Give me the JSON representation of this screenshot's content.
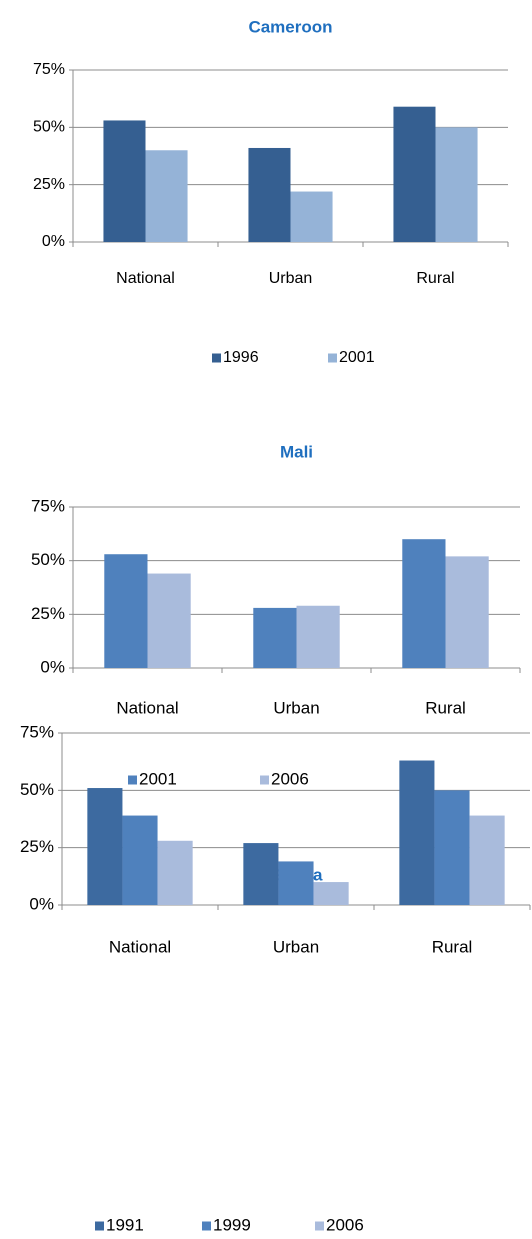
{
  "chart_data": [
    {
      "type": "bar",
      "title": "Cameroon",
      "categories": [
        "National",
        "Urban",
        "Rural"
      ],
      "series": [
        {
          "name": "1996",
          "color": "#355f91",
          "values": [
            53,
            41,
            59
          ]
        },
        {
          "name": "2001",
          "color": "#95b3d7",
          "values": [
            40,
            22,
            50
          ]
        }
      ],
      "ylim": [
        0,
        75
      ],
      "yticks": [
        {
          "value": 0,
          "label": "0%"
        },
        {
          "value": 25,
          "label": "25%"
        },
        {
          "value": 50,
          "label": "50%"
        },
        {
          "value": 75,
          "label": "75%"
        }
      ],
      "grid": true,
      "legend": "bottom"
    },
    {
      "type": "bar",
      "title": "Mali",
      "categories": [
        "National",
        "Urban",
        "Rural"
      ],
      "series": [
        {
          "name": "2001",
          "color": "#4f81bd",
          "values": [
            53,
            28,
            60
          ]
        },
        {
          "name": "2006",
          "color": "#a9bbdc",
          "values": [
            44,
            29,
            52
          ]
        }
      ],
      "ylim": [
        0,
        75
      ],
      "yticks": [
        {
          "value": 0,
          "label": "0%"
        },
        {
          "value": 25,
          "label": "25%"
        },
        {
          "value": 50,
          "label": "50%"
        },
        {
          "value": 75,
          "label": "75%"
        }
      ],
      "grid": true,
      "legend": "bottom"
    },
    {
      "type": "bar",
      "title": "Ghana",
      "categories": [
        "National",
        "Urban",
        "Rural"
      ],
      "series": [
        {
          "name": "1991",
          "color": "#3d6aa0",
          "values": [
            51,
            27,
            63
          ]
        },
        {
          "name": "1999",
          "color": "#4f81bd",
          "values": [
            39,
            19,
            50
          ]
        },
        {
          "name": "2006",
          "color": "#a9bbdc",
          "values": [
            28,
            10,
            39
          ]
        }
      ],
      "ylim": [
        0,
        75
      ],
      "yticks": [
        {
          "value": 0,
          "label": "0%"
        },
        {
          "value": 25,
          "label": "25%"
        },
        {
          "value": 50,
          "label": "50%"
        },
        {
          "value": 75,
          "label": "75%"
        }
      ],
      "grid": true,
      "legend": "bottom"
    }
  ]
}
